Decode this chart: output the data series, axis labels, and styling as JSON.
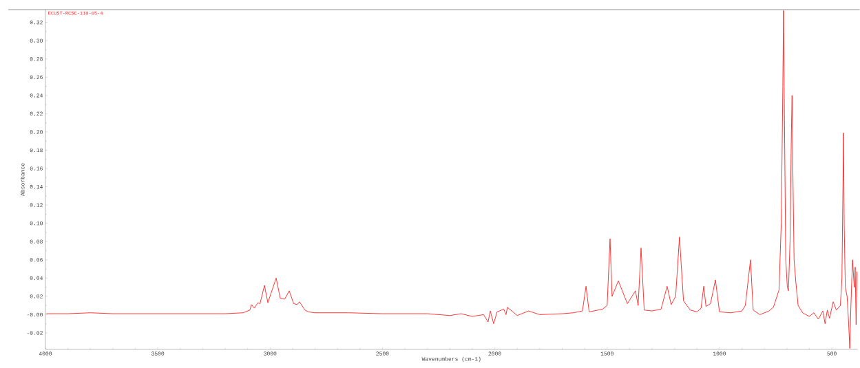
{
  "chart_data": {
    "type": "line",
    "xlabel": "Wavenumbers (cm-1)",
    "ylabel": "Absorbance",
    "annotations": [
      "ECUST-RCSC-110-05-4"
    ],
    "xlim": [
      4000,
      385
    ],
    "ylim": [
      -0.038,
      0.334
    ],
    "xticks": [
      4000,
      3500,
      3000,
      2500,
      2000,
      1500,
      1000,
      500
    ],
    "yticks": [
      {
        "value": -0.02,
        "label": "-0.02"
      },
      {
        "value": 0,
        "label": "-0.00"
      },
      {
        "value": 0.02,
        "label": "0.02"
      },
      {
        "value": 0.04,
        "label": "0.04"
      },
      {
        "value": 0.06,
        "label": "0.06"
      },
      {
        "value": 0.08,
        "label": "0.08"
      },
      {
        "value": 0.1,
        "label": "0.10"
      },
      {
        "value": 0.12,
        "label": "0.12"
      },
      {
        "value": 0.14,
        "label": "0.14"
      },
      {
        "value": 0.16,
        "label": "0.16"
      },
      {
        "value": 0.18,
        "label": "0.18"
      },
      {
        "value": 0.2,
        "label": "0.20"
      },
      {
        "value": 0.22,
        "label": "0.22"
      },
      {
        "value": 0.24,
        "label": "0.24"
      },
      {
        "value": 0.26,
        "label": "0.26"
      },
      {
        "value": 0.28,
        "label": "0.28"
      },
      {
        "value": 0.3,
        "label": "0.30"
      },
      {
        "value": 0.32,
        "label": "0.32"
      }
    ],
    "grid": false,
    "marker": "none",
    "line_style": "solid",
    "series": [
      {
        "color": "#ff2020",
        "x": [
          3996,
          3900,
          3800,
          3700,
          3600,
          3500,
          3400,
          3300,
          3200,
          3120,
          3090,
          3083,
          3070,
          3055,
          3045,
          3025,
          3010,
          2973,
          2955,
          2935,
          2915,
          2895,
          2880,
          2869,
          2845,
          2830,
          2800,
          2650,
          2500,
          2400,
          2300,
          2200,
          2150,
          2100,
          2050,
          2030,
          2020,
          2005,
          1990,
          1960,
          1950,
          1944,
          1900,
          1850,
          1800,
          1700,
          1650,
          1610,
          1594,
          1580,
          1520,
          1500,
          1487,
          1478,
          1450,
          1410,
          1374,
          1362,
          1349,
          1335,
          1300,
          1260,
          1233,
          1215,
          1195,
          1178,
          1160,
          1130,
          1100,
          1082,
          1070,
          1060,
          1040,
          1018,
          1000,
          950,
          900,
          885,
          862,
          850,
          820,
          780,
          760,
          735,
          725,
          718,
          715,
          711,
          705,
          698,
          693,
          686,
          680,
          677,
          673,
          668,
          660,
          650,
          630,
          600,
          580,
          560,
          540,
          530,
          520,
          510,
          494,
          480,
          462,
          455,
          450,
          448,
          445,
          440,
          432,
          425,
          420,
          415,
          408,
          400,
          396,
          392,
          388
        ],
        "values": [
          0.001,
          0.001,
          0.002,
          0.001,
          0.001,
          0.001,
          0.001,
          0.001,
          0.001,
          0.002,
          0.005,
          0.011,
          0.007,
          0.013,
          0.012,
          0.032,
          0.013,
          0.04,
          0.018,
          0.017,
          0.026,
          0.012,
          0.011,
          0.014,
          0.005,
          0.003,
          0.002,
          0.002,
          0.001,
          0.001,
          0.001,
          -0.001,
          0.001,
          -0.002,
          0.0,
          -0.008,
          0.004,
          -0.01,
          0.003,
          0.006,
          0.0,
          0.008,
          -0.001,
          0.004,
          0.0,
          0.001,
          0.002,
          0.004,
          0.031,
          0.003,
          0.006,
          0.01,
          0.083,
          0.02,
          0.037,
          0.012,
          0.026,
          0.01,
          0.073,
          0.005,
          0.004,
          0.006,
          0.031,
          0.011,
          0.02,
          0.085,
          0.015,
          0.005,
          0.003,
          0.007,
          0.031,
          0.009,
          0.012,
          0.038,
          0.003,
          0.002,
          0.004,
          0.01,
          0.06,
          0.005,
          0.0,
          0.004,
          0.008,
          0.027,
          0.1,
          0.25,
          0.333,
          0.22,
          0.06,
          0.03,
          0.026,
          0.08,
          0.2,
          0.24,
          0.15,
          0.06,
          0.035,
          0.01,
          0.002,
          -0.002,
          0.002,
          -0.005,
          0.004,
          -0.01,
          0.005,
          -0.004,
          0.014,
          0.005,
          0.01,
          0.04,
          0.15,
          0.199,
          0.1,
          0.03,
          0.02,
          -0.01,
          -0.037,
          0.01,
          0.06,
          0.03,
          0.052,
          -0.011,
          0.047
        ]
      }
    ]
  }
}
